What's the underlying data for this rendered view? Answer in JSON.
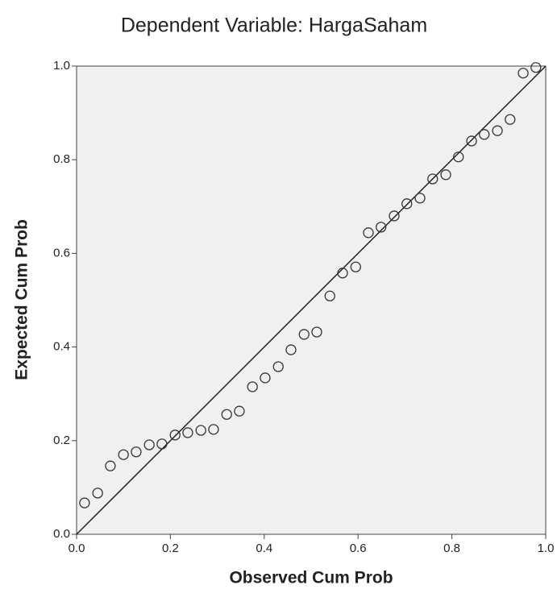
{
  "chart_data": {
    "type": "scatter",
    "title": "Dependent Variable: HargaSaham",
    "x_label": "Observed Cum Prob",
    "y_label": "Expected Cum Prob",
    "x": [
      0.017,
      0.045,
      0.072,
      0.1,
      0.127,
      0.155,
      0.182,
      0.21,
      0.237,
      0.265,
      0.292,
      0.32,
      0.347,
      0.375,
      0.402,
      0.43,
      0.457,
      0.485,
      0.512,
      0.54,
      0.567,
      0.595,
      0.622,
      0.649,
      0.677,
      0.704,
      0.732,
      0.759,
      0.787,
      0.814,
      0.842,
      0.869,
      0.897,
      0.924,
      0.952,
      0.979
    ],
    "values": [
      0.067,
      0.088,
      0.146,
      0.17,
      0.176,
      0.191,
      0.193,
      0.212,
      0.217,
      0.222,
      0.224,
      0.256,
      0.263,
      0.315,
      0.334,
      0.358,
      0.394,
      0.427,
      0.432,
      0.509,
      0.558,
      0.571,
      0.644,
      0.656,
      0.68,
      0.706,
      0.718,
      0.759,
      0.768,
      0.806,
      0.84,
      0.854,
      0.862,
      0.886,
      0.985,
      0.997
    ],
    "color": "#333333",
    "xlim": [
      0,
      1
    ],
    "ylim": [
      0,
      1
    ],
    "xticks": [
      {
        "value": 0,
        "label": "0.0"
      },
      0.2,
      0.4,
      0.6,
      0.8,
      {
        "value": 1,
        "label": "1.0"
      }
    ],
    "yticks": [
      {
        "value": 0,
        "label": "0.0"
      },
      0.2,
      0.4,
      0.6,
      0.8,
      {
        "value": 1,
        "label": "1.0"
      }
    ],
    "reference_line": true,
    "background": "#f0f0f0"
  }
}
